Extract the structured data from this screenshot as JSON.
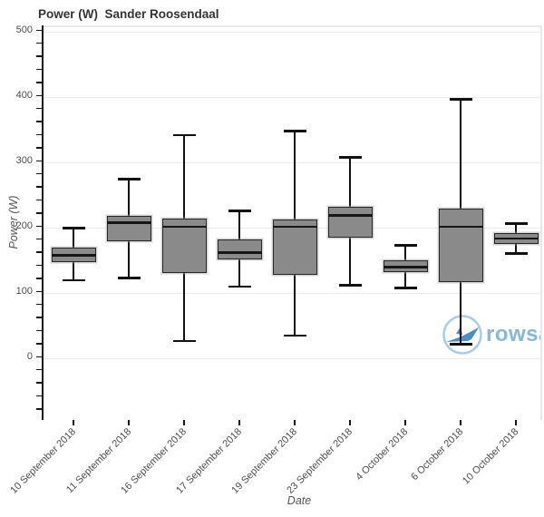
{
  "title": "Power (W)  Sander Roosendaal",
  "watermark": {
    "text": "rowsandall",
    "logo_icon": "rowing-boat-circle-icon",
    "text_color": "#84b8de",
    "boat_color": "#4a8fc7",
    "circle_color": "#a7cee9"
  },
  "colors": {
    "box_fill": "#8a8a8a",
    "box_border": "#262626",
    "median": "#161616",
    "whisker": "#111111",
    "axis": "#161616",
    "gridline": "#ececec",
    "tick_label": "#4d4d4d",
    "title": "#333333"
  },
  "chart_data": {
    "type": "box",
    "title": "Power (W)  Sander Roosendaal",
    "xlabel": "Date",
    "ylabel": "Power (W)",
    "ylim": [
      -94,
      508
    ],
    "yticks": [
      0,
      100,
      200,
      300,
      400,
      500
    ],
    "minor_tick_step": 20,
    "grid": true,
    "legend": "none",
    "categories": [
      "10 September 2018",
      "11 September 2018",
      "16 September 2018",
      "17 September 2018",
      "19 September 2018",
      "23 September 2018",
      "4 October 2018",
      "6 October 2018",
      "10 October 2018"
    ],
    "boxes": [
      {
        "min": 120,
        "q1": 147,
        "median": 158,
        "q3": 170,
        "max": 200
      },
      {
        "min": 123,
        "q1": 180,
        "median": 208,
        "q3": 218,
        "max": 275
      },
      {
        "min": 27,
        "q1": 131,
        "median": 202,
        "q3": 214,
        "max": 342
      },
      {
        "min": 110,
        "q1": 152,
        "median": 162,
        "q3": 183,
        "max": 226
      },
      {
        "min": 35,
        "q1": 128,
        "median": 202,
        "q3": 213,
        "max": 348
      },
      {
        "min": 112,
        "q1": 185,
        "median": 219,
        "q3": 232,
        "max": 308
      },
      {
        "min": 108,
        "q1": 133,
        "median": 140,
        "q3": 150,
        "max": 173
      },
      {
        "min": 22,
        "q1": 117,
        "median": 202,
        "q3": 229,
        "max": 397
      },
      {
        "min": 161,
        "q1": 176,
        "median": 184,
        "q3": 192,
        "max": 207
      }
    ]
  }
}
